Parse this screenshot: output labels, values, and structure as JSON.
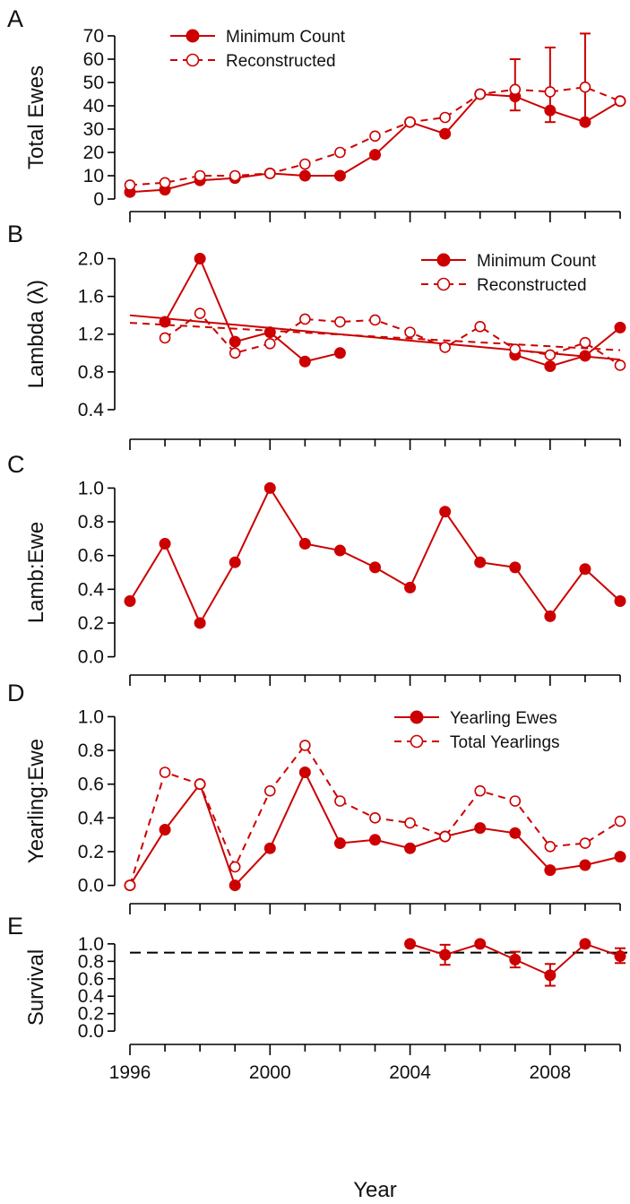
{
  "colors": {
    "series": "#cc0000",
    "axis": "#000000",
    "reference": "#000000"
  },
  "xaxis": {
    "label": "Year",
    "ticks": [
      1996,
      2000,
      2004,
      2008
    ],
    "range": [
      1996,
      2010
    ]
  },
  "chart_data": [
    {
      "panel": "A",
      "type": "line",
      "ylabel": "Total Ewes",
      "ylim": [
        0,
        70
      ],
      "yticks": [
        0,
        10,
        20,
        30,
        40,
        50,
        60,
        70
      ],
      "legend": "top-left",
      "x": [
        1996,
        1997,
        1998,
        1999,
        2000,
        2001,
        2002,
        2003,
        2004,
        2005,
        2006,
        2007,
        2008,
        2009,
        2010
      ],
      "series": [
        {
          "name": "Minimum Count",
          "style": "solid-filled",
          "values": [
            3,
            4,
            8,
            9,
            11,
            10,
            10,
            19,
            33,
            28,
            45,
            44,
            38,
            33,
            42
          ],
          "errors": [
            null,
            null,
            null,
            null,
            null,
            null,
            null,
            null,
            null,
            null,
            null,
            [
              38,
              60
            ],
            [
              33,
              65
            ],
            [
              33,
              71
            ],
            null
          ]
        },
        {
          "name": "Reconstructed",
          "style": "dashed-open",
          "values": [
            6,
            7,
            10,
            10,
            11,
            15,
            20,
            27,
            33,
            35,
            45,
            47,
            46,
            48,
            42
          ]
        }
      ]
    },
    {
      "panel": "B",
      "type": "line",
      "ylabel": "Lambda (λ)",
      "ylim": [
        0.2,
        2.1
      ],
      "yticks": [
        0.4,
        0.8,
        1.2,
        1.6,
        2.0
      ],
      "ytick_labels": [
        "0.4",
        "0.8",
        "1.2",
        "1.6",
        "2.0"
      ],
      "legend": "top-right",
      "x": [
        1996,
        1997,
        1998,
        1999,
        2000,
        2001,
        2002,
        2003,
        2004,
        2005,
        2006,
        2007,
        2008,
        2009,
        2010
      ],
      "series": [
        {
          "name": "Minimum Count",
          "style": "solid-filled",
          "values": [
            null,
            1.33,
            2.0,
            1.12,
            1.22,
            0.91,
            1.0,
            null,
            null,
            null,
            null,
            0.98,
            0.86,
            0.97,
            1.27
          ],
          "trend": [
            [
              1996,
              1.4
            ],
            [
              2010,
              0.93
            ]
          ]
        },
        {
          "name": "Reconstructed",
          "style": "dashed-open",
          "values": [
            null,
            1.16,
            1.42,
            1.0,
            1.1,
            1.36,
            1.33,
            1.35,
            1.22,
            1.06,
            1.28,
            1.04,
            0.98,
            1.11,
            0.87
          ],
          "trend": [
            [
              1996,
              1.32
            ],
            [
              2010,
              1.03
            ]
          ]
        }
      ]
    },
    {
      "panel": "C",
      "type": "line",
      "ylabel": "Lamb:Ewe",
      "ylim": [
        -0.05,
        1.05
      ],
      "yticks": [
        0.0,
        0.2,
        0.4,
        0.6,
        0.8,
        1.0
      ],
      "ytick_labels": [
        "0.0",
        "0.2",
        "0.4",
        "0.6",
        "0.8",
        "1.0"
      ],
      "x": [
        1996,
        1997,
        1998,
        1999,
        2000,
        2001,
        2002,
        2003,
        2004,
        2005,
        2006,
        2007,
        2008,
        2009,
        2010
      ],
      "series": [
        {
          "style": "solid-filled",
          "values": [
            0.33,
            0.67,
            0.2,
            0.56,
            1.0,
            0.67,
            0.63,
            0.53,
            0.41,
            0.86,
            0.56,
            0.53,
            0.24,
            0.52,
            0.33
          ]
        }
      ]
    },
    {
      "panel": "D",
      "type": "line",
      "ylabel": "Yearling:Ewe",
      "ylim": [
        -0.05,
        1.05
      ],
      "yticks": [
        0.0,
        0.2,
        0.4,
        0.6,
        0.8,
        1.0
      ],
      "ytick_labels": [
        "0.0",
        "0.2",
        "0.4",
        "0.6",
        "0.8",
        "1.0"
      ],
      "legend": "top-right",
      "x": [
        1996,
        1997,
        1998,
        1999,
        2000,
        2001,
        2002,
        2003,
        2004,
        2005,
        2006,
        2007,
        2008,
        2009,
        2010
      ],
      "series": [
        {
          "name": "Yearling Ewes",
          "style": "solid-filled",
          "values": [
            0.0,
            0.33,
            0.6,
            0.0,
            0.22,
            0.67,
            0.25,
            0.27,
            0.22,
            0.29,
            0.34,
            0.31,
            0.09,
            0.12,
            0.17
          ]
        },
        {
          "name": "Total Yearlings",
          "style": "dashed-open",
          "values": [
            0.0,
            0.67,
            0.6,
            0.11,
            0.56,
            0.83,
            0.5,
            0.4,
            0.37,
            0.29,
            0.56,
            0.5,
            0.23,
            0.25,
            0.38
          ]
        }
      ]
    },
    {
      "panel": "E",
      "type": "scatter",
      "ylabel": "Survival",
      "ylim": [
        -0.05,
        1.05
      ],
      "yticks": [
        0.0,
        0.2,
        0.4,
        0.6,
        0.8,
        1.0
      ],
      "ytick_labels": [
        "0.0",
        "0.2",
        "0.4",
        "0.6",
        "0.8",
        "1.0"
      ],
      "reference_line": 0.9,
      "x": [
        2004,
        2005,
        2006,
        2007,
        2008,
        2009,
        2010
      ],
      "series": [
        {
          "style": "solid-filled-line",
          "values": [
            1.0,
            0.875,
            1.0,
            0.82,
            0.64,
            1.0,
            0.86
          ],
          "errors": [
            null,
            [
              0.76,
              0.99
            ],
            null,
            [
              0.73,
              0.91
            ],
            [
              0.52,
              0.77
            ],
            null,
            [
              0.78,
              0.95
            ]
          ]
        }
      ]
    }
  ]
}
